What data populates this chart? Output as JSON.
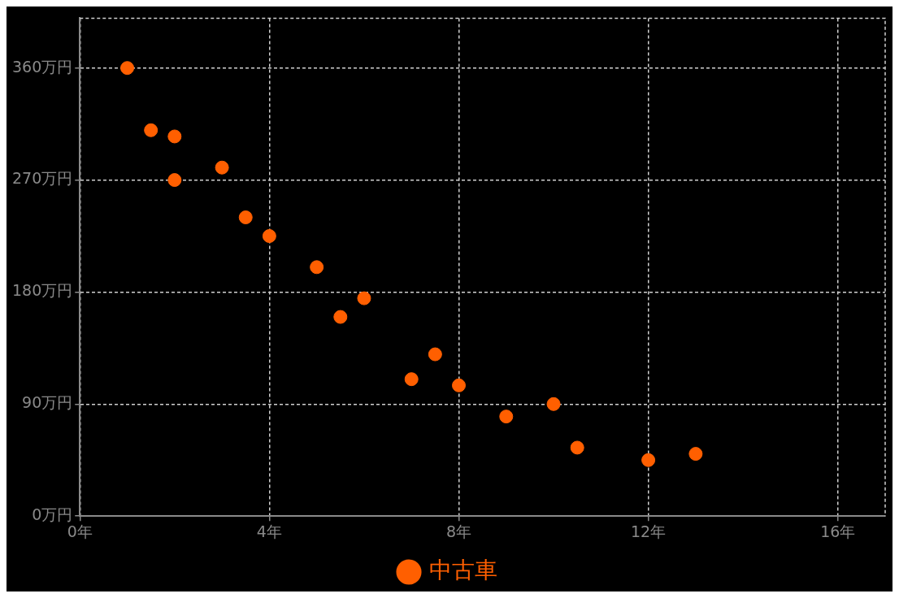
{
  "chart_data": {
    "type": "scatter",
    "x": [
      1,
      1.5,
      2,
      2,
      3,
      3.5,
      4,
      5,
      5.5,
      6,
      7,
      7.5,
      8,
      9,
      10,
      10.5,
      12,
      13
    ],
    "series": [
      {
        "name": "中古車",
        "color": "#ff5f00",
        "values": [
          360,
          310,
          305,
          270,
          280,
          240,
          225,
          200,
          160,
          175,
          110,
          130,
          105,
          80,
          90,
          55,
          45,
          50
        ]
      }
    ],
    "xlim": [
      0,
      17
    ],
    "ylim": [
      0,
      400
    ],
    "xticks": [
      {
        "value": 0,
        "label": "0年"
      },
      {
        "value": 4,
        "label": "4年"
      },
      {
        "value": 8,
        "label": "8年"
      },
      {
        "value": 12,
        "label": "12年"
      },
      {
        "value": 16,
        "label": "16年"
      }
    ],
    "yticks": [
      {
        "value": 0,
        "label": "0万円"
      },
      {
        "value": 90,
        "label": "90万円"
      },
      {
        "value": 180,
        "label": "180万円"
      },
      {
        "value": 270,
        "label": "270万円"
      },
      {
        "value": 360,
        "label": "360万円"
      }
    ],
    "grid": true,
    "legend": "bottom",
    "marker": "circle"
  }
}
